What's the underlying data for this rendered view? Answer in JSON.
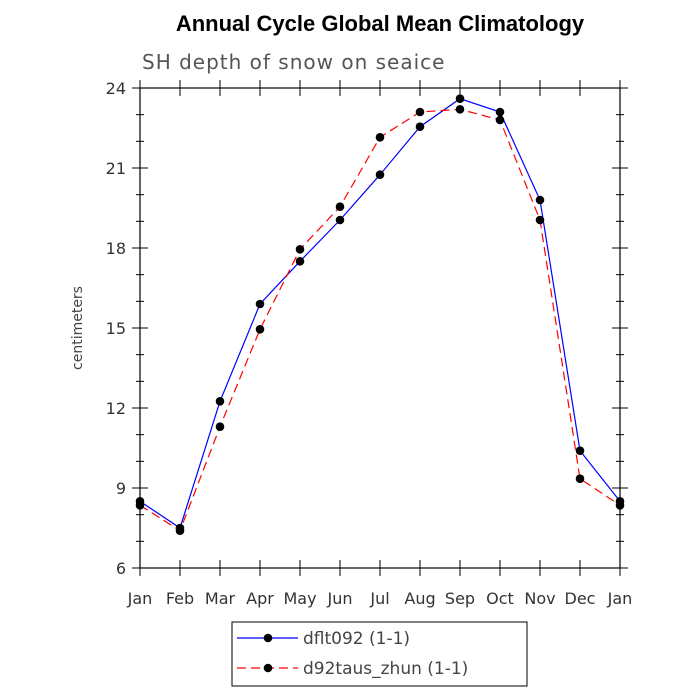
{
  "chart_data": {
    "type": "line",
    "title": "Annual Cycle Global Mean Climatology",
    "subtitle": "SH depth of snow on seaice",
    "xlabel": "",
    "ylabel": "centimeters",
    "categories": [
      "Jan",
      "Feb",
      "Mar",
      "Apr",
      "May",
      "Jun",
      "Jul",
      "Aug",
      "Sep",
      "Oct",
      "Nov",
      "Dec",
      "Jan"
    ],
    "ylim": [
      6,
      24
    ],
    "yticks": [
      6,
      9,
      12,
      15,
      18,
      21,
      24
    ],
    "series": [
      {
        "name": "dflt092 (1-1)",
        "color": "#0000ff",
        "style": "solid",
        "values": [
          8.5,
          7.5,
          12.25,
          15.9,
          17.5,
          19.05,
          20.75,
          22.55,
          23.6,
          23.1,
          19.8,
          10.4,
          8.5
        ]
      },
      {
        "name": "d92taus_zhun (1-1)",
        "color": "#ff0000",
        "style": "dashed",
        "values": [
          8.35,
          7.4,
          11.3,
          14.95,
          17.95,
          19.55,
          22.15,
          23.1,
          23.2,
          22.8,
          19.05,
          9.35,
          8.35
        ]
      }
    ],
    "legend_position": "bottom-center"
  }
}
